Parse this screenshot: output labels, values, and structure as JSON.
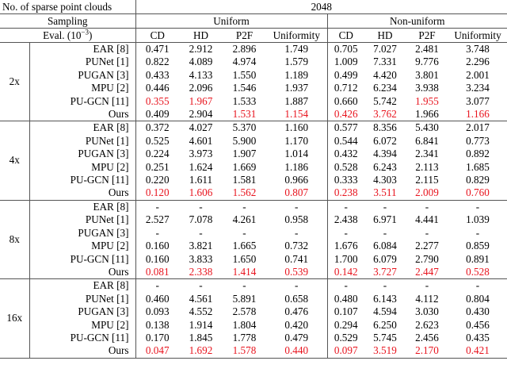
{
  "header": {
    "row1_label": "No. of sparse point clouds",
    "row1_value": "2048",
    "sampling_label": "Sampling",
    "uniform_label": "Uniform",
    "nonuniform_label": "Non-uniform",
    "eval_label": "Eval. (10",
    "eval_exp": "−3",
    "eval_close": ")",
    "metrics": [
      "CD",
      "HD",
      "P2F",
      "Uniformity"
    ]
  },
  "groups": [
    {
      "scale": "2x",
      "rows": [
        {
          "method": "EAR [8]",
          "u": [
            "0.471",
            "2.912",
            "2.896",
            "1.749"
          ],
          "n": [
            "0.705",
            "7.027",
            "2.481",
            "3.748"
          ],
          "u_red": [
            false,
            false,
            false,
            false
          ],
          "n_red": [
            false,
            false,
            false,
            false
          ]
        },
        {
          "method": "PUNet [1]",
          "u": [
            "0.822",
            "4.089",
            "4.974",
            "1.579"
          ],
          "n": [
            "1.009",
            "7.331",
            "9.776",
            "2.296"
          ],
          "u_red": [
            false,
            false,
            false,
            false
          ],
          "n_red": [
            false,
            false,
            false,
            false
          ]
        },
        {
          "method": "PUGAN [3]",
          "u": [
            "0.433",
            "4.133",
            "1.550",
            "1.189"
          ],
          "n": [
            "0.499",
            "4.420",
            "3.801",
            "2.001"
          ],
          "u_red": [
            false,
            false,
            false,
            false
          ],
          "n_red": [
            false,
            false,
            false,
            false
          ]
        },
        {
          "method": "MPU [2]",
          "u": [
            "0.446",
            "2.096",
            "1.546",
            "1.937"
          ],
          "n": [
            "0.712",
            "6.234",
            "3.938",
            "3.234"
          ],
          "u_red": [
            false,
            false,
            false,
            false
          ],
          "n_red": [
            false,
            false,
            false,
            false
          ]
        },
        {
          "method": "PU-GCN [11]",
          "u": [
            "0.355",
            "1.967",
            "1.533",
            "1.887"
          ],
          "n": [
            "0.660",
            "5.742",
            "1.955",
            "3.077"
          ],
          "u_red": [
            true,
            true,
            false,
            false
          ],
          "n_red": [
            false,
            false,
            true,
            false
          ]
        },
        {
          "method": "Ours",
          "u": [
            "0.409",
            "2.904",
            "1.531",
            "1.154"
          ],
          "n": [
            "0.426",
            "3.762",
            "1.966",
            "1.166"
          ],
          "u_red": [
            false,
            false,
            true,
            true
          ],
          "n_red": [
            true,
            true,
            false,
            true
          ]
        }
      ]
    },
    {
      "scale": "4x",
      "rows": [
        {
          "method": "EAR [8]",
          "u": [
            "0.372",
            "4.027",
            "5.370",
            "1.160"
          ],
          "n": [
            "0.577",
            "8.356",
            "5.430",
            "2.017"
          ],
          "u_red": [
            false,
            false,
            false,
            false
          ],
          "n_red": [
            false,
            false,
            false,
            false
          ]
        },
        {
          "method": "PUNet [1]",
          "u": [
            "0.525",
            "4.601",
            "5.900",
            "1.170"
          ],
          "n": [
            "0.544",
            "6.072",
            "6.841",
            "0.773"
          ],
          "u_red": [
            false,
            false,
            false,
            false
          ],
          "n_red": [
            false,
            false,
            false,
            false
          ]
        },
        {
          "method": "PUGAN [3]",
          "u": [
            "0.224",
            "3.973",
            "1.907",
            "1.014"
          ],
          "n": [
            "0.432",
            "4.394",
            "2.341",
            "0.892"
          ],
          "u_red": [
            false,
            false,
            false,
            false
          ],
          "n_red": [
            false,
            false,
            false,
            false
          ]
        },
        {
          "method": "MPU [2]",
          "u": [
            "0.251",
            "1.624",
            "1.669",
            "1.186"
          ],
          "n": [
            "0.528",
            "6.243",
            "2.113",
            "1.685"
          ],
          "u_red": [
            false,
            false,
            false,
            false
          ],
          "n_red": [
            false,
            false,
            false,
            false
          ]
        },
        {
          "method": "PU-GCN [11]",
          "u": [
            "0.220",
            "1.611",
            "1.581",
            "0.966"
          ],
          "n": [
            "0.333",
            "4.303",
            "2.115",
            "0.829"
          ],
          "u_red": [
            false,
            false,
            false,
            false
          ],
          "n_red": [
            false,
            false,
            false,
            false
          ]
        },
        {
          "method": "Ours",
          "u": [
            "0.120",
            "1.606",
            "1.562",
            "0.807"
          ],
          "n": [
            "0.238",
            "3.511",
            "2.009",
            "0.760"
          ],
          "u_red": [
            true,
            true,
            true,
            true
          ],
          "n_red": [
            true,
            true,
            true,
            true
          ]
        }
      ]
    },
    {
      "scale": "8x",
      "rows": [
        {
          "method": "EAR [8]",
          "u": [
            "-",
            "-",
            "-",
            "-"
          ],
          "n": [
            "-",
            "-",
            "-",
            "-"
          ],
          "u_red": [
            false,
            false,
            false,
            false
          ],
          "n_red": [
            false,
            false,
            false,
            false
          ]
        },
        {
          "method": "PUNet [1]",
          "u": [
            "2.527",
            "7.078",
            "4.261",
            "0.958"
          ],
          "n": [
            "2.438",
            "6.971",
            "4.441",
            "1.039"
          ],
          "u_red": [
            false,
            false,
            false,
            false
          ],
          "n_red": [
            false,
            false,
            false,
            false
          ]
        },
        {
          "method": "PUGAN [3]",
          "u": [
            "-",
            "-",
            "-",
            "-"
          ],
          "n": [
            "-",
            "-",
            "-",
            "-"
          ],
          "u_red": [
            false,
            false,
            false,
            false
          ],
          "n_red": [
            false,
            false,
            false,
            false
          ]
        },
        {
          "method": "MPU [2]",
          "u": [
            "0.160",
            "3.821",
            "1.665",
            "0.732"
          ],
          "n": [
            "1.676",
            "6.084",
            "2.277",
            "0.859"
          ],
          "u_red": [
            false,
            false,
            false,
            false
          ],
          "n_red": [
            false,
            false,
            false,
            false
          ]
        },
        {
          "method": "PU-GCN [11]",
          "u": [
            "0.160",
            "3.833",
            "1.650",
            "0.741"
          ],
          "n": [
            "1.700",
            "6.079",
            "2.790",
            "0.891"
          ],
          "u_red": [
            false,
            false,
            false,
            false
          ],
          "n_red": [
            false,
            false,
            false,
            false
          ]
        },
        {
          "method": "Ours",
          "u": [
            "0.081",
            "2.338",
            "1.414",
            "0.539"
          ],
          "n": [
            "0.142",
            "3.727",
            "2.447",
            "0.528"
          ],
          "u_red": [
            true,
            true,
            true,
            true
          ],
          "n_red": [
            true,
            true,
            true,
            true
          ]
        }
      ]
    },
    {
      "scale": "16x",
      "rows": [
        {
          "method": "EAR [8]",
          "u": [
            "-",
            "-",
            "-",
            "-"
          ],
          "n": [
            "-",
            "-",
            "-",
            "-"
          ],
          "u_red": [
            false,
            false,
            false,
            false
          ],
          "n_red": [
            false,
            false,
            false,
            false
          ]
        },
        {
          "method": "PUNet [1]",
          "u": [
            "0.460",
            "4.561",
            "5.891",
            "0.658"
          ],
          "n": [
            "0.480",
            "6.143",
            "4.112",
            "0.804"
          ],
          "u_red": [
            false,
            false,
            false,
            false
          ],
          "n_red": [
            false,
            false,
            false,
            false
          ]
        },
        {
          "method": "PUGAN [3]",
          "u": [
            "0.093",
            "4.552",
            "2.578",
            "0.476"
          ],
          "n": [
            "0.107",
            "4.594",
            "3.030",
            "0.430"
          ],
          "u_red": [
            false,
            false,
            false,
            false
          ],
          "n_red": [
            false,
            false,
            false,
            false
          ]
        },
        {
          "method": "MPU [2]",
          "u": [
            "0.138",
            "1.914",
            "1.804",
            "0.420"
          ],
          "n": [
            "0.294",
            "6.250",
            "2.623",
            "0.456"
          ],
          "u_red": [
            false,
            false,
            false,
            false
          ],
          "n_red": [
            false,
            false,
            false,
            false
          ]
        },
        {
          "method": "PU-GCN [11]",
          "u": [
            "0.170",
            "1.845",
            "1.778",
            "0.479"
          ],
          "n": [
            "0.529",
            "5.745",
            "2.456",
            "0.435"
          ],
          "u_red": [
            false,
            false,
            false,
            false
          ],
          "n_red": [
            false,
            false,
            false,
            false
          ]
        },
        {
          "method": "Ours",
          "u": [
            "0.047",
            "1.692",
            "1.578",
            "0.440"
          ],
          "n": [
            "0.097",
            "3.519",
            "2.170",
            "0.421"
          ],
          "u_red": [
            true,
            true,
            true,
            true
          ],
          "n_red": [
            true,
            true,
            true,
            true
          ]
        }
      ]
    }
  ],
  "colors": {
    "highlight": "#e8141e",
    "rule": "#555555"
  }
}
